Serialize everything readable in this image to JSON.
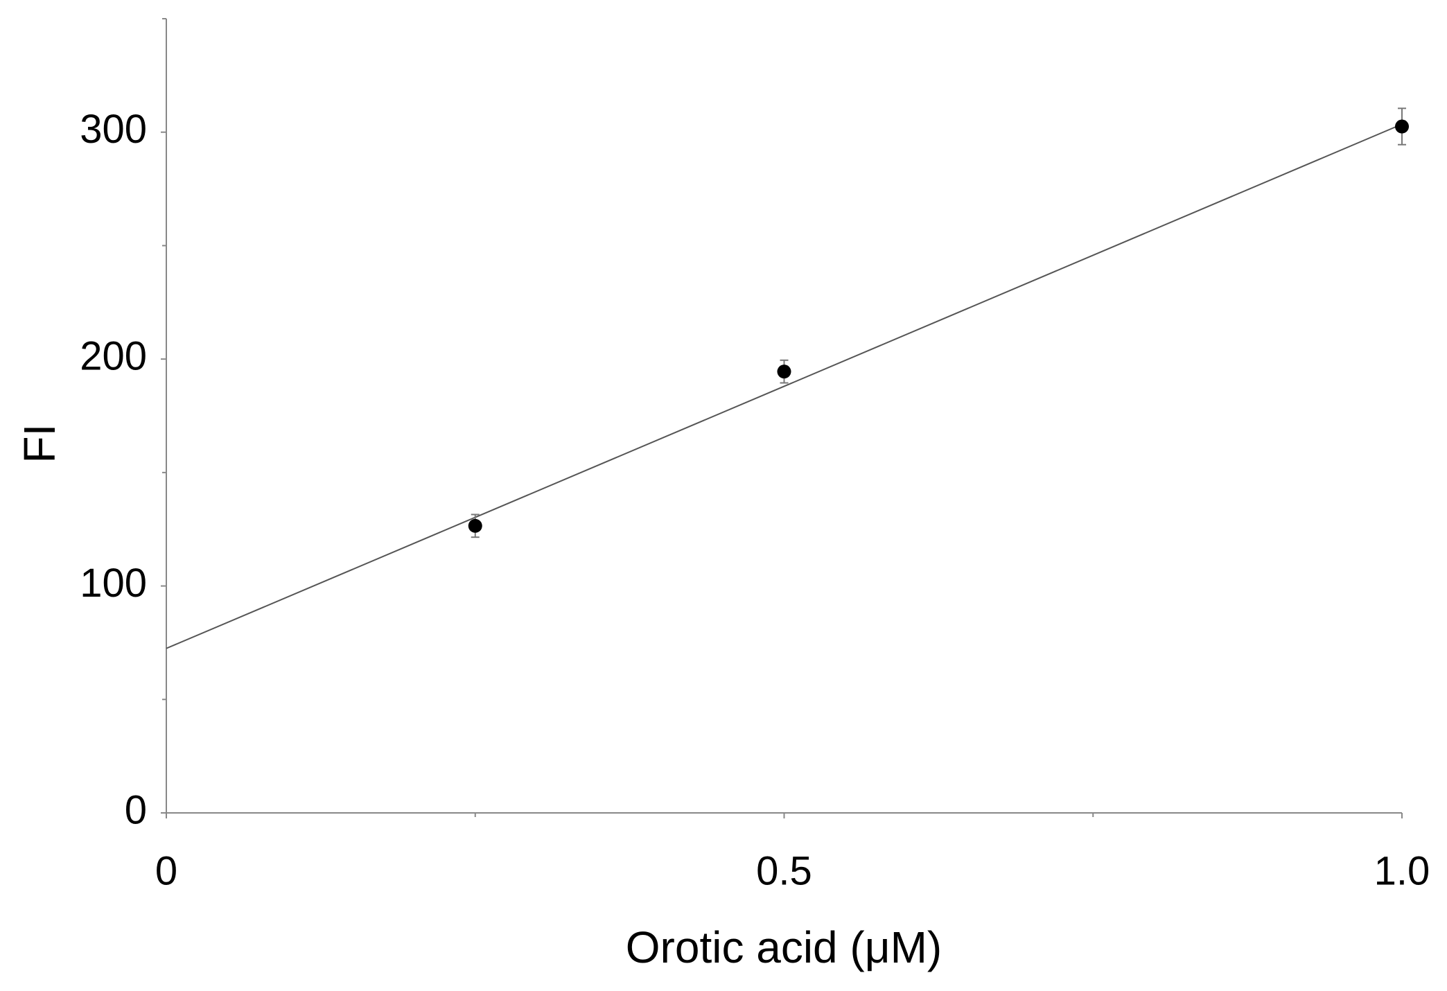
{
  "chart_data": {
    "type": "scatter",
    "x_label": "Orotic acid (μM)",
    "y_label": "FI",
    "x": [
      0.25,
      0.5,
      1.0
    ],
    "values": [
      126.5,
      194.5,
      302.5
    ],
    "errors": [
      5,
      5,
      8
    ],
    "color": "#000000",
    "fit": {
      "intercept": 72.5,
      "slope": 231,
      "color": "#555555"
    },
    "xlim": [
      0,
      1
    ],
    "xticks": [
      0,
      0.5,
      {
        "value": 1,
        "label": "1.0"
      }
    ],
    "xminorticks": [
      0.25,
      0.75
    ],
    "ylim": [
      0,
      350
    ],
    "yticks": [
      0,
      100,
      200,
      300
    ],
    "yminorticks": [
      50,
      150,
      250,
      350
    ],
    "grid": false
  }
}
